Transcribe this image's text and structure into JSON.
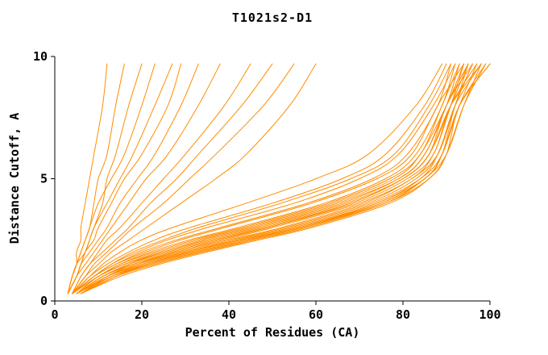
{
  "chart_data": {
    "type": "line",
    "title": "T1021s2-D1",
    "xlabel": "Percent of Residues (CA)",
    "ylabel": "Distance Cutoff, A",
    "xlim": [
      0,
      100
    ],
    "ylim": [
      0,
      10
    ],
    "x_ticks": [
      0,
      20,
      40,
      60,
      80,
      100
    ],
    "y_ticks": [
      0,
      5,
      10
    ],
    "grid": false,
    "legend": "none",
    "line_color": "#ff8c00",
    "axis_color": "#000000",
    "background": "#ffffff",
    "cutoffs": [
      0.3,
      1,
      1.5,
      2,
      2.5,
      3,
      4,
      5,
      6,
      8,
      9.7
    ],
    "curves": [
      [
        5,
        11,
        17,
        25,
        35,
        46,
        66,
        79,
        85,
        90,
        93
      ],
      [
        4,
        10,
        15,
        22,
        31,
        42,
        62,
        76,
        83,
        89,
        92
      ],
      [
        5,
        12,
        19,
        28,
        39,
        50,
        70,
        82,
        87,
        91,
        94
      ],
      [
        6,
        13,
        21,
        31,
        43,
        55,
        74,
        84,
        88,
        92,
        95
      ],
      [
        4,
        9,
        14,
        20,
        28,
        38,
        58,
        73,
        81,
        88,
        91
      ],
      [
        5,
        11,
        18,
        27,
        37,
        48,
        68,
        80,
        86,
        90,
        96
      ],
      [
        6,
        14,
        22,
        33,
        45,
        57,
        75,
        85,
        89,
        93,
        97
      ],
      [
        4,
        10,
        16,
        24,
        33,
        44,
        64,
        78,
        84,
        90,
        94
      ],
      [
        5,
        12,
        20,
        30,
        41,
        53,
        72,
        83,
        88,
        92,
        98
      ],
      [
        6,
        15,
        24,
        35,
        47,
        59,
        77,
        86,
        90,
        94,
        99
      ],
      [
        4,
        9,
        13,
        19,
        26,
        35,
        55,
        70,
        79,
        87,
        92
      ],
      [
        5,
        13,
        21,
        32,
        44,
        56,
        75,
        85,
        89,
        93,
        100
      ],
      [
        4,
        8,
        12,
        17,
        23,
        31,
        50,
        66,
        76,
        85,
        90
      ],
      [
        5,
        11,
        17,
        26,
        36,
        47,
        67,
        80,
        86,
        91,
        95
      ],
      [
        6,
        14,
        23,
        34,
        46,
        58,
        76,
        85,
        90,
        94,
        98
      ],
      [
        4,
        10,
        15,
        23,
        32,
        43,
        63,
        77,
        84,
        89,
        93
      ],
      [
        5,
        12,
        19,
        29,
        40,
        52,
        71,
        82,
        88,
        92,
        96
      ],
      [
        6,
        13,
        20,
        30,
        42,
        54,
        73,
        84,
        89,
        93,
        99
      ],
      [
        4,
        9,
        14,
        21,
        29,
        39,
        59,
        74,
        82,
        88,
        94
      ],
      [
        5,
        11,
        18,
        28,
        38,
        49,
        69,
        81,
        87,
        91,
        97
      ],
      [
        4,
        8,
        11,
        15,
        20,
        27,
        44,
        60,
        72,
        83,
        89
      ],
      [
        5,
        10,
        16,
        25,
        34,
        45,
        65,
        79,
        85,
        90,
        95
      ],
      [
        6,
        12,
        18,
        27,
        37,
        49,
        68,
        80,
        86,
        91,
        98
      ],
      [
        4,
        9,
        13,
        18,
        25,
        33,
        52,
        68,
        78,
        86,
        91
      ],
      [
        5,
        13,
        22,
        33,
        45,
        57,
        76,
        86,
        90,
        93,
        100
      ],
      [
        6,
        14,
        21,
        31,
        43,
        56,
        74,
        85,
        89,
        92,
        96
      ],
      [
        4,
        7,
        9,
        12,
        15,
        18,
        25,
        31,
        37,
        48,
        55
      ],
      [
        4,
        6,
        8,
        11,
        14,
        17,
        22,
        28,
        33,
        43,
        50
      ],
      [
        4,
        6,
        8,
        10,
        12,
        15,
        20,
        25,
        30,
        39,
        45
      ],
      [
        3,
        5,
        7,
        9,
        11,
        13,
        17,
        21,
        26,
        33,
        38
      ],
      [
        3,
        5,
        6,
        8,
        10,
        12,
        15,
        19,
        23,
        29,
        33
      ],
      [
        3,
        5,
        6,
        7,
        9,
        10,
        13,
        16,
        20,
        26,
        29
      ],
      [
        3,
        4,
        5,
        7,
        8,
        9,
        12,
        15,
        18,
        23,
        27
      ],
      [
        3,
        4,
        5,
        6,
        7,
        8,
        10,
        13,
        16,
        20,
        23
      ],
      [
        4,
        7,
        10,
        13,
        17,
        21,
        29,
        37,
        44,
        54,
        60
      ],
      [
        3,
        4,
        5,
        5,
        6,
        6,
        7,
        8,
        9,
        11,
        12
      ],
      [
        3,
        4,
        5,
        6,
        7,
        8,
        9,
        10,
        12,
        14,
        16
      ],
      [
        3,
        5,
        6,
        7,
        8,
        9,
        11,
        12,
        14,
        17,
        20
      ]
    ]
  }
}
